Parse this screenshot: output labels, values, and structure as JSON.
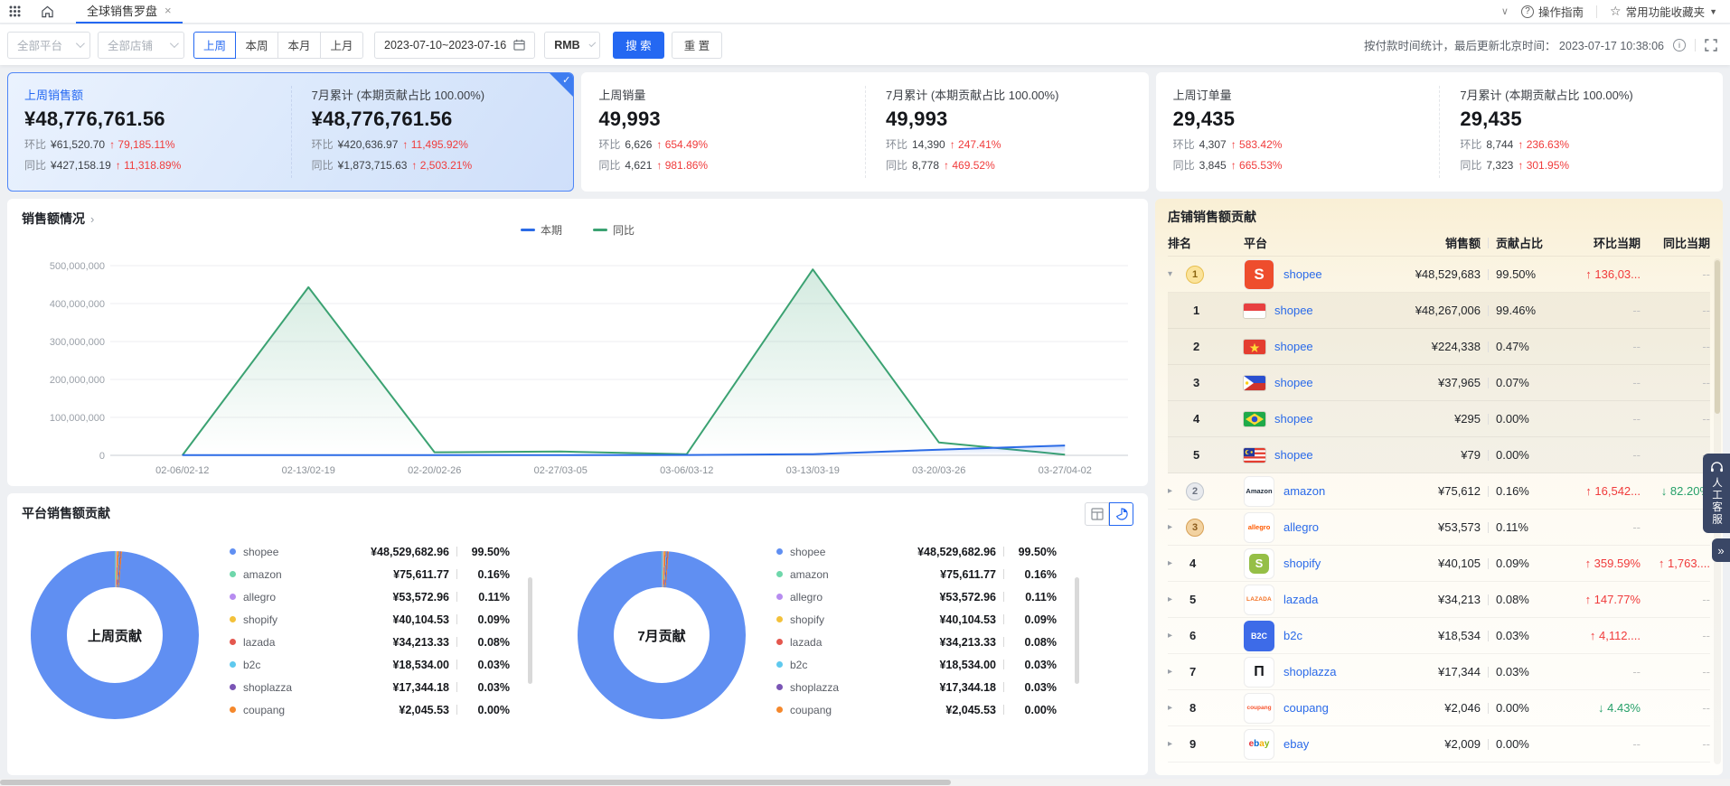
{
  "topbar": {
    "tab_label": "全球销售罗盘",
    "tab_close": "×",
    "guide_label": "操作指南",
    "favorites_label": "常用功能收藏夹"
  },
  "filter_bar": {
    "platform_select": "全部平台",
    "store_select": "全部店铺",
    "period_buttons": [
      "上周",
      "本周",
      "本月",
      "上月"
    ],
    "active_period": "上周",
    "date_range": "2023-07-10~2023-07-16",
    "currency_select": "RMB",
    "search_button": "搜 索",
    "reset_button": "重 置",
    "update_note": "按付款时间统计，最后更新北京时间： 2023-07-17 10:38:06"
  },
  "colors": {
    "accent_blue": "#2468f2",
    "up_red": "#f03b3b",
    "down_green": "#26a069",
    "series_current": "#2b6be6",
    "series_yoy": "#3ba272"
  },
  "icons": {
    "apps": "apps-grid-icon",
    "home": "home-icon",
    "question": "question-icon",
    "star": "star-icon",
    "calendar": "calendar-icon",
    "info": "info-icon",
    "fullscreen": "fullscreen-icon",
    "table_view": "table-view-icon",
    "pie_view": "pie-view-icon",
    "headset": "headset-icon"
  },
  "kpi_cards": [
    {
      "selected": true,
      "left": {
        "title": "上周销售额",
        "value": "¥48,776,761.56",
        "stats": [
          {
            "label": "环比",
            "value": "¥61,520.70",
            "dir": "up",
            "pct": "79,185.11%"
          },
          {
            "label": "同比",
            "value": "¥427,158.19",
            "dir": "up",
            "pct": "11,318.89%"
          }
        ]
      },
      "right": {
        "title": "7月累计 (本期贡献占比 100.00%)",
        "value": "¥48,776,761.56",
        "stats": [
          {
            "label": "环比",
            "value": "¥420,636.97",
            "dir": "up",
            "pct": "11,495.92%"
          },
          {
            "label": "同比",
            "value": "¥1,873,715.63",
            "dir": "up",
            "pct": "2,503.21%"
          }
        ]
      }
    },
    {
      "selected": false,
      "left": {
        "title": "上周销量",
        "value": "49,993",
        "stats": [
          {
            "label": "环比",
            "value": "6,626",
            "dir": "up",
            "pct": "654.49%"
          },
          {
            "label": "同比",
            "value": "4,621",
            "dir": "up",
            "pct": "981.86%"
          }
        ]
      },
      "right": {
        "title": "7月累计 (本期贡献占比 100.00%)",
        "value": "49,993",
        "stats": [
          {
            "label": "环比",
            "value": "14,390",
            "dir": "up",
            "pct": "247.41%"
          },
          {
            "label": "同比",
            "value": "8,778",
            "dir": "up",
            "pct": "469.52%"
          }
        ]
      }
    },
    {
      "selected": false,
      "left": {
        "title": "上周订单量",
        "value": "29,435",
        "stats": [
          {
            "label": "环比",
            "value": "4,307",
            "dir": "up",
            "pct": "583.42%"
          },
          {
            "label": "同比",
            "value": "3,845",
            "dir": "up",
            "pct": "665.53%"
          }
        ]
      },
      "right": {
        "title": "7月累计 (本期贡献占比 100.00%)",
        "value": "29,435",
        "stats": [
          {
            "label": "环比",
            "value": "8,744",
            "dir": "up",
            "pct": "236.63%"
          },
          {
            "label": "同比",
            "value": "7,323",
            "dir": "up",
            "pct": "301.95%"
          }
        ]
      }
    }
  ],
  "chart_data": [
    {
      "type": "line",
      "title": "销售额情况",
      "categories": [
        "02-06/02-12",
        "02-13/02-19",
        "02-20/02-26",
        "02-27/03-05",
        "03-06/03-12",
        "03-13/03-19",
        "03-20/03-26",
        "03-27/04-02"
      ],
      "series": [
        {
          "name": "本期",
          "color": "#2b6be6",
          "values": [
            500000,
            500000,
            500000,
            500000,
            1000000,
            3000000,
            15000000,
            26000000
          ]
        },
        {
          "name": "同比",
          "color": "#3ba272",
          "values": [
            0,
            443000000,
            8000000,
            10000000,
            3000000,
            490000000,
            34000000,
            2000000
          ]
        }
      ],
      "ylim": [
        0,
        500000000
      ],
      "ytick_labels": [
        "500,000,000",
        "400,000,000",
        "300,000,000",
        "200,000,000",
        "100,000,000",
        "0"
      ],
      "grid": true,
      "legend_position": "top-center"
    },
    {
      "type": "pie",
      "title": "平台销售额贡献",
      "donuts": [
        {
          "center_label": "上周贡献"
        },
        {
          "center_label": "7月贡献"
        }
      ],
      "items": [
        {
          "name": "shopee",
          "value": "¥48,529,682.96",
          "pct": "99.50%",
          "color": "#608ff2"
        },
        {
          "name": "amazon",
          "value": "¥75,611.77",
          "pct": "0.16%",
          "color": "#6fd7ab"
        },
        {
          "name": "allegro",
          "value": "¥53,572.96",
          "pct": "0.11%",
          "color": "#b78cf0"
        },
        {
          "name": "shopify",
          "value": "¥40,104.53",
          "pct": "0.09%",
          "color": "#f3c13a"
        },
        {
          "name": "lazada",
          "value": "¥34,213.33",
          "pct": "0.08%",
          "color": "#e4574e"
        },
        {
          "name": "b2c",
          "value": "¥18,534.00",
          "pct": "0.03%",
          "color": "#5fc9ee"
        },
        {
          "name": "shoplazza",
          "value": "¥17,344.18",
          "pct": "0.03%",
          "color": "#7a55b5"
        },
        {
          "name": "coupang",
          "value": "¥2,045.53",
          "pct": "0.00%",
          "color": "#f5882c"
        }
      ]
    }
  ],
  "store_table": {
    "title": "店铺销售额贡献",
    "columns": [
      "排名",
      "平台",
      "销售额",
      "贡献占比",
      "环比当期",
      "同比当期"
    ],
    "rows": [
      {
        "sub": false,
        "expand": "open",
        "rank": "1",
        "medal": "gold",
        "logo": "shopee",
        "name": "shopee",
        "sales": "¥48,529,683",
        "pct": "99.50%",
        "mom_text": "136,03...",
        "mom_dir": "up",
        "yoy_text": "--",
        "yoy_dir": ""
      },
      {
        "sub": true,
        "expand": "",
        "rank": "1",
        "medal": "",
        "flag": "indonesia",
        "name": "shopee",
        "sales": "¥48,267,006",
        "pct": "99.46%",
        "mom_text": "--",
        "mom_dir": "",
        "yoy_text": "--",
        "yoy_dir": ""
      },
      {
        "sub": true,
        "expand": "",
        "rank": "2",
        "medal": "",
        "flag": "vietnam",
        "name": "shopee",
        "sales": "¥224,338",
        "pct": "0.47%",
        "mom_text": "--",
        "mom_dir": "",
        "yoy_text": "--",
        "yoy_dir": ""
      },
      {
        "sub": true,
        "expand": "",
        "rank": "3",
        "medal": "",
        "flag": "philippines",
        "name": "shopee",
        "sales": "¥37,965",
        "pct": "0.07%",
        "mom_text": "--",
        "mom_dir": "",
        "yoy_text": "--",
        "yoy_dir": ""
      },
      {
        "sub": true,
        "expand": "",
        "rank": "4",
        "medal": "",
        "flag": "brazil",
        "name": "shopee",
        "sales": "¥295",
        "pct": "0.00%",
        "mom_text": "--",
        "mom_dir": "",
        "yoy_text": "--",
        "yoy_dir": ""
      },
      {
        "sub": true,
        "expand": "",
        "rank": "5",
        "medal": "",
        "flag": "malaysia",
        "name": "shopee",
        "sales": "¥79",
        "pct": "0.00%",
        "mom_text": "--",
        "mom_dir": "",
        "yoy_text": "--",
        "yoy_dir": ""
      },
      {
        "sub": false,
        "expand": "closed",
        "rank": "2",
        "medal": "silver",
        "logo": "amazon",
        "name": "amazon",
        "sales": "¥75,612",
        "pct": "0.16%",
        "mom_text": "16,542...",
        "mom_dir": "up",
        "yoy_text": "82.20%",
        "yoy_dir": "down"
      },
      {
        "sub": false,
        "expand": "closed",
        "rank": "3",
        "medal": "bronze",
        "logo": "allegro",
        "name": "allegro",
        "sales": "¥53,573",
        "pct": "0.11%",
        "mom_text": "--",
        "mom_dir": "",
        "yoy_text": "--",
        "yoy_dir": ""
      },
      {
        "sub": false,
        "expand": "closed",
        "rank": "4",
        "medal": "",
        "logo": "shopify",
        "name": "shopify",
        "sales": "¥40,105",
        "pct": "0.09%",
        "mom_text": "359.59%",
        "mom_dir": "up",
        "yoy_text": "1,763....",
        "yoy_dir": "up"
      },
      {
        "sub": false,
        "expand": "closed",
        "rank": "5",
        "medal": "",
        "logo": "lazada",
        "name": "lazada",
        "sales": "¥34,213",
        "pct": "0.08%",
        "mom_text": "147.77%",
        "mom_dir": "up",
        "yoy_text": "--",
        "yoy_dir": ""
      },
      {
        "sub": false,
        "expand": "closed",
        "rank": "6",
        "medal": "",
        "logo": "b2c",
        "name": "b2c",
        "sales": "¥18,534",
        "pct": "0.03%",
        "mom_text": "4,112....",
        "mom_dir": "up",
        "yoy_text": "--",
        "yoy_dir": ""
      },
      {
        "sub": false,
        "expand": "closed",
        "rank": "7",
        "medal": "",
        "logo": "shoplazza",
        "name": "shoplazza",
        "sales": "¥17,344",
        "pct": "0.03%",
        "mom_text": "--",
        "mom_dir": "",
        "yoy_text": "--",
        "yoy_dir": ""
      },
      {
        "sub": false,
        "expand": "closed",
        "rank": "8",
        "medal": "",
        "logo": "coupang",
        "name": "coupang",
        "sales": "¥2,046",
        "pct": "0.00%",
        "mom_text": "4.43%",
        "mom_dir": "down",
        "yoy_text": "--",
        "yoy_dir": ""
      },
      {
        "sub": false,
        "expand": "closed",
        "rank": "9",
        "medal": "",
        "logo": "ebay",
        "name": "ebay",
        "sales": "¥2,009",
        "pct": "0.00%",
        "mom_text": "--",
        "mom_dir": "",
        "yoy_text": "--",
        "yoy_dir": ""
      }
    ]
  },
  "service_widget": {
    "label": "人工客服",
    "collapse": "»"
  }
}
